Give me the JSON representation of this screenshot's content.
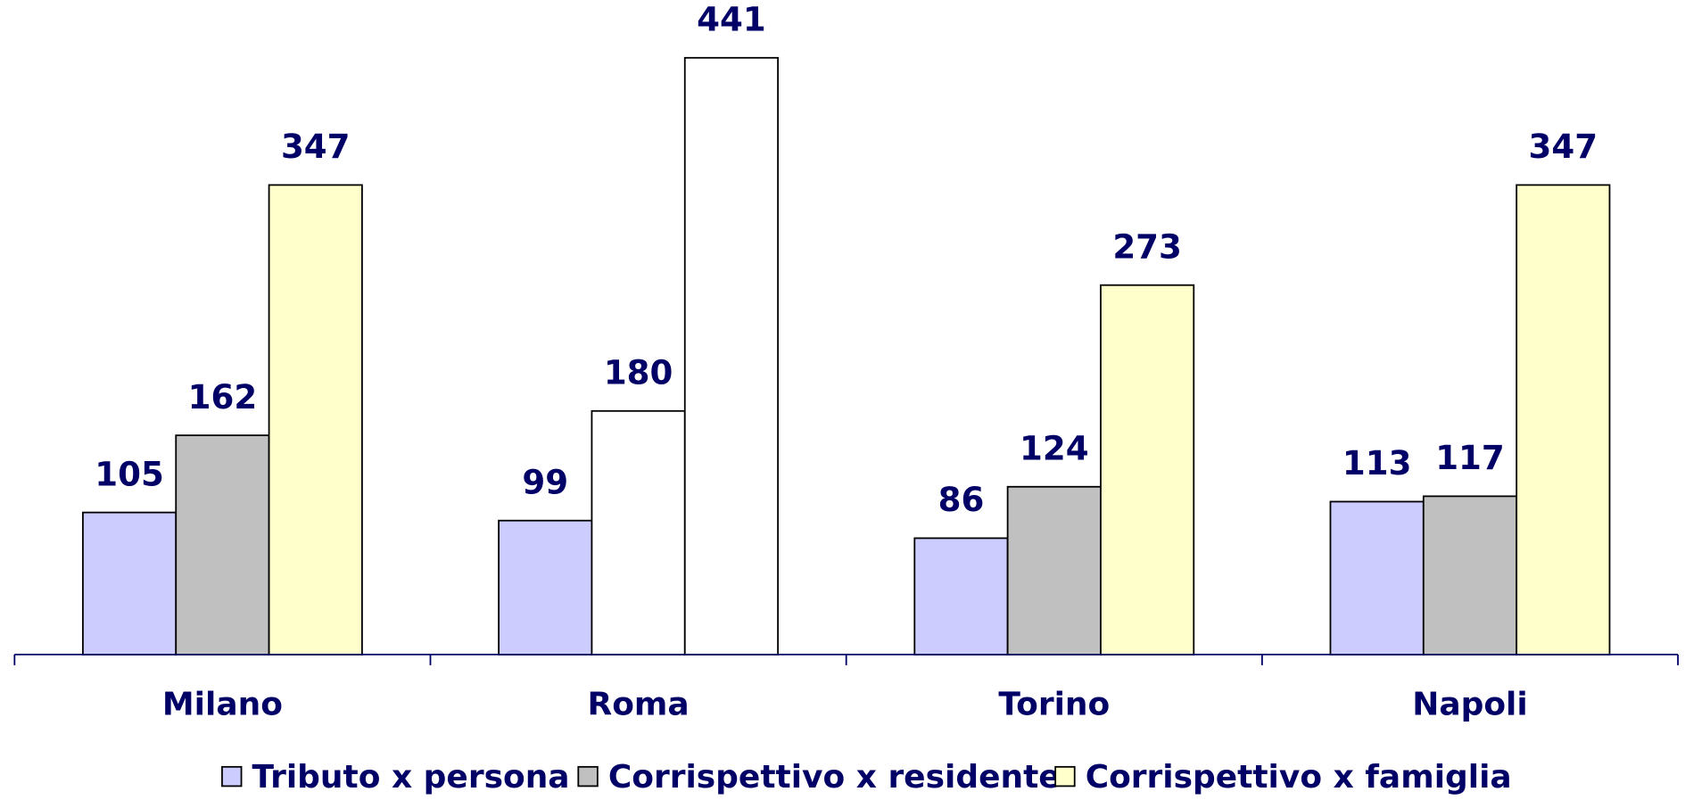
{
  "chart_data": {
    "type": "bar",
    "categories": [
      "Milano",
      "Roma",
      "Torino",
      "Napoli"
    ],
    "series": [
      {
        "name": "Tributo x persona",
        "color": "#ccccff",
        "values": [
          105,
          99,
          86,
          113
        ]
      },
      {
        "name": "Corrispettivo x residente",
        "color": "#c0c0c0",
        "values": [
          162,
          180,
          124,
          117
        ],
        "point_colors": [
          null,
          "#ffffff",
          null,
          null
        ]
      },
      {
        "name": "Corrispettivo x famiglia",
        "color": "#ffffcc",
        "values": [
          347,
          441,
          273,
          347
        ],
        "point_colors": [
          null,
          "#ffffff",
          null,
          null
        ]
      }
    ],
    "ylim": [
      0,
      480
    ],
    "legend": "bottom",
    "grid": false
  }
}
